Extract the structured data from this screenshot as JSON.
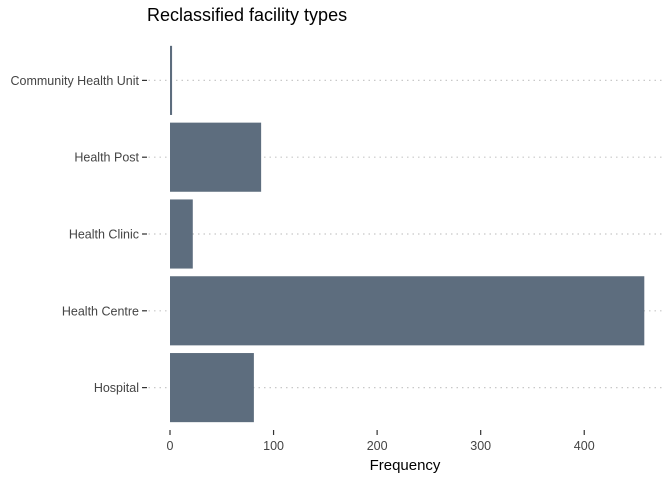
{
  "chart_data": {
    "type": "bar",
    "orientation": "horizontal",
    "title": "Reclassified facility types",
    "xlabel": "Frequency",
    "ylabel": "",
    "categories": [
      "Community Health Unit",
      "Health Post",
      "Health Clinic",
      "Health Centre",
      "Hospital"
    ],
    "values": [
      2,
      88,
      22,
      458,
      81
    ],
    "xlim": [
      0,
      480
    ],
    "xticks": [
      0,
      100,
      200,
      300,
      400
    ],
    "grid": "dotted horizontal lines at categories",
    "legend": "none",
    "bar_color": "#5d6d7e",
    "grid_color": "#c8c8c8",
    "text_color": "#444444"
  }
}
